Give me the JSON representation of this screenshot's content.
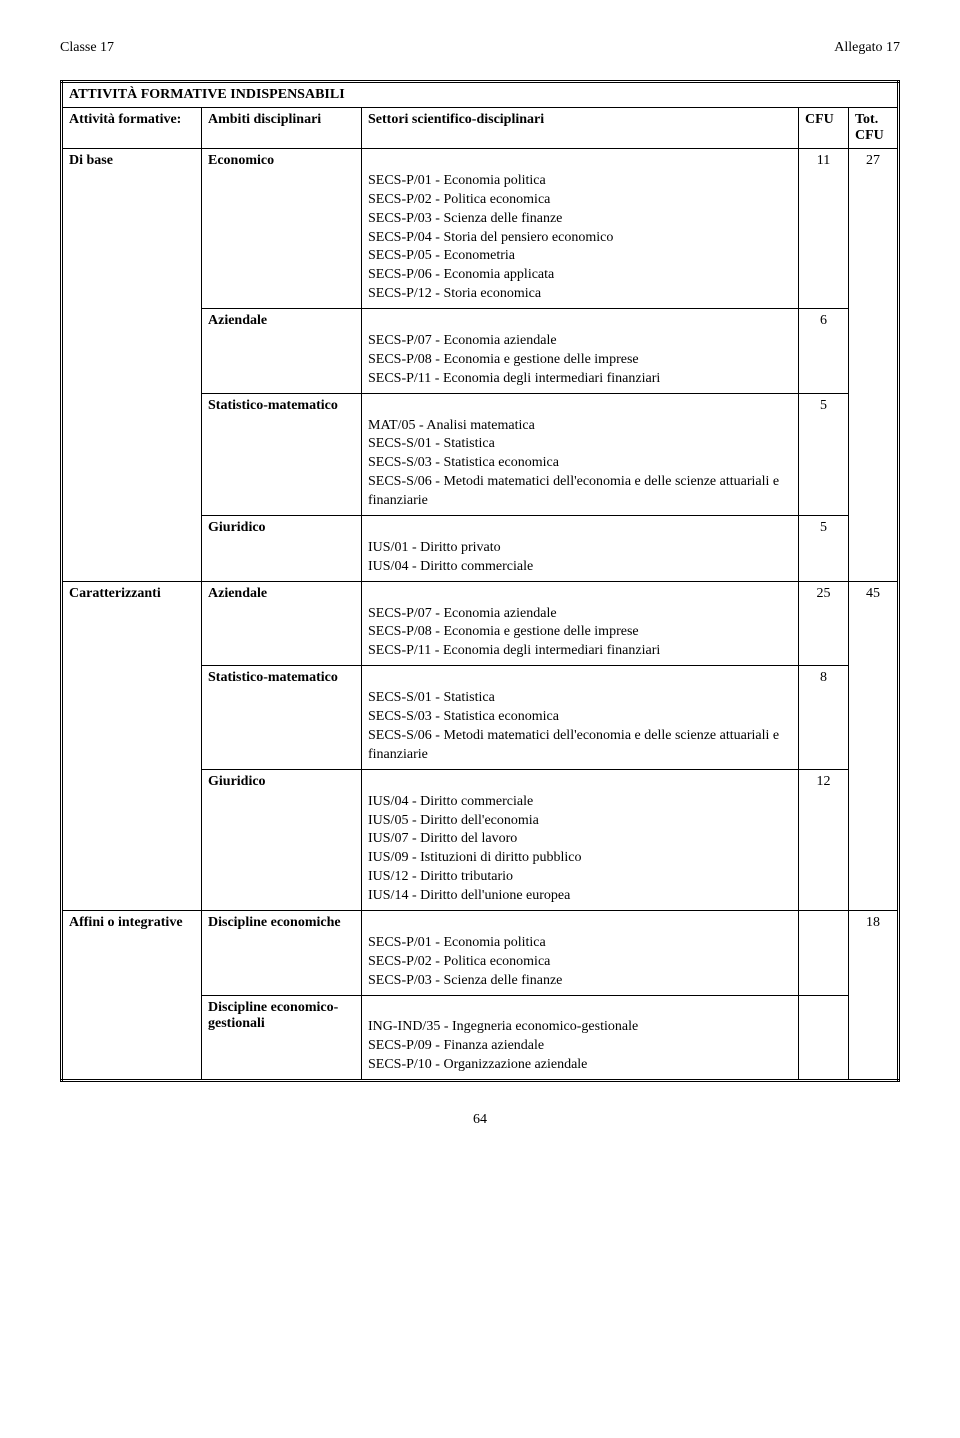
{
  "header": {
    "left": "Classe 17",
    "right": "Allegato 17"
  },
  "title": "ATTIVITÀ FORMATIVE INDISPENSABILI",
  "columns": {
    "attivita": "Attività formative:",
    "ambiti": "Ambiti disciplinari",
    "settori": "Settori scientifico-disciplinari",
    "cfu": "CFU",
    "totcfu": "Tot. CFU"
  },
  "groups": [
    {
      "attivita": "Di base",
      "tot_cfu": "27",
      "rows": [
        {
          "ambito": "Economico",
          "cfu": "11",
          "settori": [
            "SECS-P/01 - Economia politica",
            "SECS-P/02 - Politica economica",
            "SECS-P/03 - Scienza delle finanze",
            "SECS-P/04 - Storia del pensiero economico",
            "SECS-P/05 - Econometria",
            "SECS-P/06 - Economia applicata",
            "SECS-P/12 - Storia economica"
          ]
        },
        {
          "ambito": "Aziendale",
          "cfu": "6",
          "settori": [
            "SECS-P/07 - Economia aziendale",
            "SECS-P/08 - Economia e gestione delle imprese",
            "SECS-P/11 - Economia degli intermediari finanziari"
          ]
        },
        {
          "ambito": "Statistico-matematico",
          "cfu": "5",
          "settori": [
            "MAT/05 - Analisi matematica",
            "SECS-S/01 - Statistica",
            "SECS-S/03 - Statistica economica",
            "SECS-S/06 - Metodi matematici dell'economia e delle scienze attuariali e finanziarie"
          ]
        },
        {
          "ambito": "Giuridico",
          "cfu": "5",
          "settori": [
            "IUS/01 - Diritto privato",
            "IUS/04 - Diritto commerciale"
          ]
        }
      ]
    },
    {
      "attivita": "Caratterizzanti",
      "tot_cfu": "45",
      "rows": [
        {
          "ambito": "Aziendale",
          "cfu": "25",
          "settori": [
            "SECS-P/07 - Economia aziendale",
            "SECS-P/08 - Economia e gestione delle imprese",
            "SECS-P/11 - Economia degli intermediari finanziari"
          ]
        },
        {
          "ambito": "Statistico-matematico",
          "cfu": "8",
          "settori": [
            "SECS-S/01 - Statistica",
            "SECS-S/03 - Statistica economica",
            "SECS-S/06 - Metodi matematici dell'economia e delle scienze attuariali e finanziarie"
          ]
        },
        {
          "ambito": "Giuridico",
          "cfu": "12",
          "settori": [
            "IUS/04 - Diritto commerciale",
            "IUS/05 - Diritto dell'economia",
            "IUS/07 - Diritto del lavoro",
            "IUS/09 - Istituzioni di diritto pubblico",
            "IUS/12 - Diritto tributario",
            "IUS/14 - Diritto dell'unione europea"
          ]
        }
      ]
    },
    {
      "attivita": "Affini o integrative",
      "tot_cfu": "18",
      "rows": [
        {
          "ambito": "Discipline economiche",
          "cfu": "",
          "settori": [
            "SECS-P/01 - Economia politica",
            "SECS-P/02 - Politica economica",
            "SECS-P/03 - Scienza delle finanze"
          ]
        },
        {
          "ambito": "Discipline economico-gestionali",
          "cfu": "",
          "settori": [
            "ING-IND/35 - Ingegneria economico-gestionale",
            "SECS-P/09 - Finanza aziendale",
            "SECS-P/10 - Organizzazione aziendale"
          ]
        }
      ]
    }
  ],
  "page_number": "64"
}
